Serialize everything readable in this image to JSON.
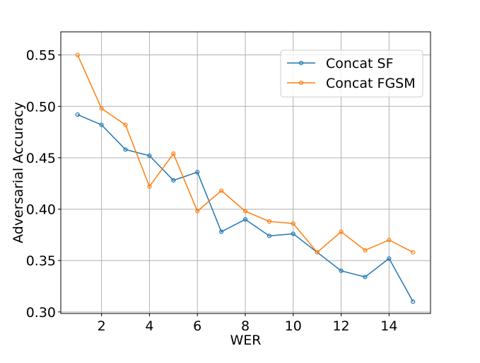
{
  "chart_data": {
    "type": "line",
    "title": "",
    "xlabel": "WER",
    "ylabel": "Adversarial Accuracy",
    "xlim": [
      0.3,
      15.73
    ],
    "ylim": [
      0.2985,
      0.5725
    ],
    "xticks": [
      2,
      4,
      6,
      8,
      10,
      12,
      14
    ],
    "xtick_labels": [
      "2",
      "4",
      "6",
      "8",
      "10",
      "12",
      "14"
    ],
    "yticks": [
      0.3,
      0.35,
      0.4,
      0.45,
      0.5,
      0.55
    ],
    "ytick_labels": [
      "0.30",
      "0.35",
      "0.40",
      "0.45",
      "0.50",
      "0.55"
    ],
    "grid": true,
    "legend_position": "top-right",
    "x": [
      1,
      2,
      3,
      4,
      5,
      6,
      7,
      8,
      9,
      10,
      11,
      12,
      13,
      14,
      15
    ],
    "series": [
      {
        "name": "Concat SF",
        "color": "#1f77b4",
        "values": [
          0.492,
          0.482,
          0.458,
          0.452,
          0.428,
          0.436,
          0.378,
          0.39,
          0.374,
          0.376,
          0.358,
          0.34,
          0.334,
          0.352,
          0.31
        ]
      },
      {
        "name": "Concat FGSM",
        "color": "#ff7f0e",
        "values": [
          0.55,
          0.498,
          0.482,
          0.422,
          0.454,
          0.398,
          0.418,
          0.398,
          0.388,
          0.386,
          0.358,
          0.378,
          0.36,
          0.37,
          0.358
        ]
      }
    ]
  }
}
